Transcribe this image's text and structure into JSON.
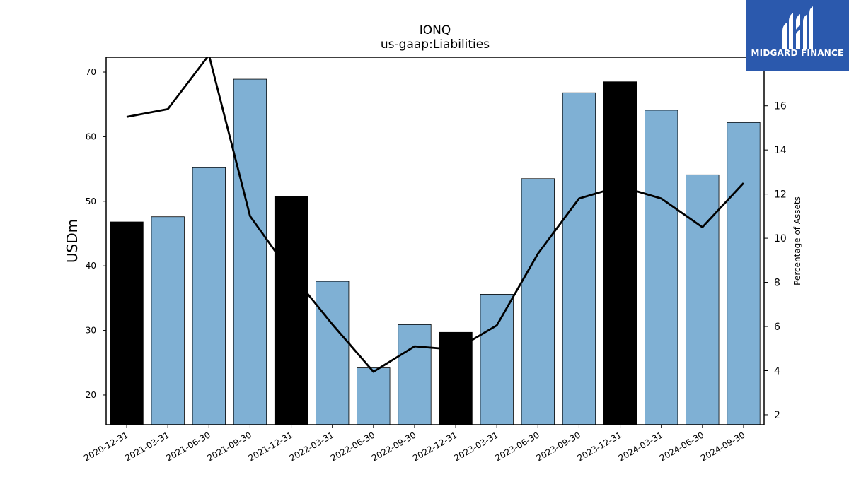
{
  "chart_data": {
    "type": "bar",
    "title": "IONQ",
    "subtitle": "us-gaap:Liabilities",
    "ylabel": "USDm",
    "y2label": "Percentage of Assets",
    "ylim": [
      15.4,
      72.3
    ],
    "y2lim": [
      1.55,
      18.2
    ],
    "yticks": [
      20,
      30,
      40,
      50,
      60,
      70
    ],
    "y2ticks": [
      2,
      4,
      6,
      8,
      10,
      12,
      14,
      16
    ],
    "categories": [
      "2020-12-31",
      "2021-03-31",
      "2021-06-30",
      "2021-09-30",
      "2021-12-31",
      "2022-03-31",
      "2022-06-30",
      "2022-09-30",
      "2022-12-31",
      "2023-03-31",
      "2023-06-30",
      "2023-09-30",
      "2023-12-31",
      "2024-03-31",
      "2024-06-30",
      "2024-09-30"
    ],
    "series": [
      {
        "type": "bar",
        "axis": "left",
        "values": [
          46.8,
          47.6,
          55.2,
          68.9,
          50.7,
          37.6,
          24.2,
          30.9,
          29.7,
          35.6,
          53.5,
          66.8,
          68.5,
          64.1,
          54.1,
          62.2
        ],
        "colors": [
          "#000000",
          "#7fb0d4",
          "#7fb0d4",
          "#7fb0d4",
          "#000000",
          "#7fb0d4",
          "#7fb0d4",
          "#7fb0d4",
          "#000000",
          "#7fb0d4",
          "#7fb0d4",
          "#7fb0d4",
          "#000000",
          "#7fb0d4",
          "#7fb0d4",
          "#7fb0d4"
        ]
      },
      {
        "type": "line",
        "axis": "right",
        "color": "#000000",
        "values": [
          15.5,
          15.85,
          18.3,
          11.0,
          8.4,
          6.1,
          3.95,
          5.1,
          4.95,
          6.05,
          9.3,
          11.8,
          12.35,
          11.8,
          10.5,
          12.5
        ]
      }
    ],
    "grid": false
  },
  "logo": {
    "text": "MIDGARD FINANCE"
  }
}
